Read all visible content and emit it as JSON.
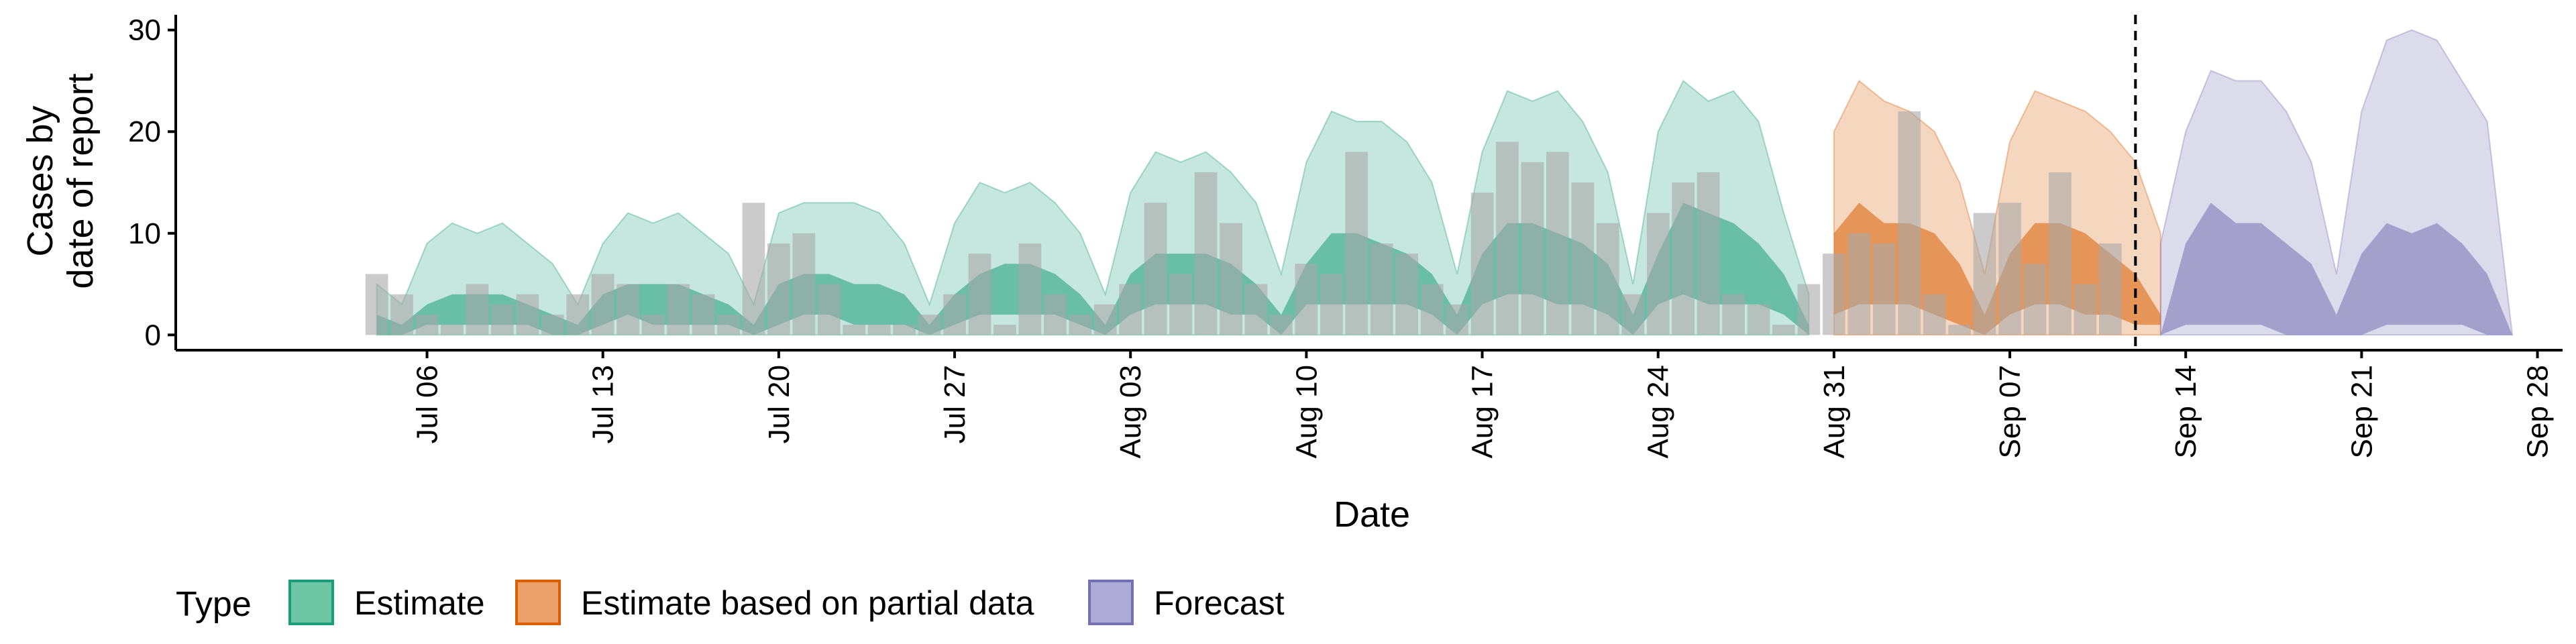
{
  "chart_data": {
    "type": "area",
    "xlabel": "Date",
    "ylabel_lines": [
      "Cases by",
      "date of report"
    ],
    "ylim": [
      -1.5,
      31.5
    ],
    "yticks": [
      0,
      10,
      20,
      30
    ],
    "xlim": [
      "2020-06-26",
      "2020-09-29"
    ],
    "xticks": [
      {
        "date": "2020-07-06",
        "label": "Jul 06"
      },
      {
        "date": "2020-07-13",
        "label": "Jul 13"
      },
      {
        "date": "2020-07-20",
        "label": "Jul 20"
      },
      {
        "date": "2020-07-27",
        "label": "Jul 27"
      },
      {
        "date": "2020-08-03",
        "label": "Aug 03"
      },
      {
        "date": "2020-08-10",
        "label": "Aug 10"
      },
      {
        "date": "2020-08-17",
        "label": "Aug 17"
      },
      {
        "date": "2020-08-24",
        "label": "Aug 24"
      },
      {
        "date": "2020-08-31",
        "label": "Aug 31"
      },
      {
        "date": "2020-09-07",
        "label": "Sep 07"
      },
      {
        "date": "2020-09-14",
        "label": "Sep 14"
      },
      {
        "date": "2020-09-21",
        "label": "Sep 21"
      },
      {
        "date": "2020-09-28",
        "label": "Sep 28"
      }
    ],
    "forecast_line_date": "2020-09-12",
    "bar_color": "#A9A9A9",
    "reported_cases": {
      "start": "2020-07-04",
      "values": [
        6,
        4,
        2,
        1,
        5,
        3,
        4,
        2,
        4,
        6,
        5,
        2,
        5,
        4,
        2,
        13,
        9,
        10,
        5,
        1,
        1,
        1,
        2,
        4,
        8,
        1,
        9,
        4,
        2,
        3,
        5,
        13,
        6,
        16,
        11,
        5,
        2,
        7,
        6,
        18,
        9,
        8,
        5,
        3,
        14,
        19,
        17,
        18,
        15,
        11,
        4,
        12,
        15,
        16,
        4,
        3,
        1,
        5,
        8,
        10,
        9,
        22,
        4,
        1,
        12,
        13,
        7,
        16,
        5,
        9
      ]
    },
    "series": [
      {
        "name": "Estimate",
        "color": "#1B9E77",
        "start": "2020-07-04",
        "lower90": [
          0,
          0,
          0,
          0,
          0,
          0,
          0,
          0,
          0,
          0,
          0,
          0,
          0,
          0,
          0,
          0,
          0,
          0,
          0,
          0,
          0,
          0,
          0,
          0,
          0,
          0,
          0,
          0,
          0,
          0,
          0,
          0,
          0,
          0,
          0,
          0,
          0,
          0,
          0,
          0,
          0,
          0,
          0,
          0,
          0,
          0,
          0,
          0,
          0,
          0,
          0,
          0,
          0,
          0,
          0,
          0,
          0,
          0
        ],
        "upper90": [
          5,
          3,
          9,
          11,
          10,
          11,
          9,
          7,
          3,
          9,
          12,
          11,
          12,
          10,
          8,
          3,
          12,
          13,
          13,
          13,
          12,
          9,
          3,
          11,
          15,
          14,
          15,
          13,
          10,
          4,
          14,
          18,
          17,
          18,
          16,
          13,
          6,
          17,
          22,
          21,
          21,
          19,
          15,
          6,
          18,
          24,
          23,
          24,
          21,
          16,
          5,
          20,
          25,
          23,
          24,
          21,
          12,
          4
        ],
        "lower50": [
          0,
          0,
          1,
          1,
          1,
          1,
          1,
          0,
          0,
          1,
          2,
          1,
          1,
          1,
          1,
          0,
          1,
          2,
          2,
          1,
          1,
          1,
          0,
          1,
          2,
          2,
          2,
          2,
          1,
          0,
          2,
          3,
          3,
          3,
          2,
          2,
          0,
          3,
          3,
          3,
          3,
          3,
          2,
          0,
          3,
          4,
          4,
          3,
          3,
          2,
          0,
          3,
          4,
          3,
          3,
          3,
          2,
          0
        ],
        "upper50": [
          2,
          1,
          3,
          4,
          4,
          4,
          3,
          2,
          1,
          4,
          5,
          5,
          5,
          4,
          3,
          1,
          5,
          6,
          6,
          5,
          5,
          4,
          1,
          4,
          6,
          7,
          7,
          6,
          4,
          1,
          6,
          8,
          8,
          8,
          7,
          5,
          2,
          7,
          10,
          10,
          9,
          8,
          6,
          2,
          8,
          11,
          11,
          10,
          9,
          7,
          2,
          8,
          13,
          12,
          11,
          9,
          6,
          1
        ]
      },
      {
        "name": "Estimate based on partial data",
        "color": "#D95F02",
        "start": "2020-08-31",
        "lower90": [
          0,
          0,
          0,
          0,
          0,
          0,
          0,
          0,
          0,
          0,
          0,
          0,
          0,
          0
        ],
        "upper90": [
          20,
          25,
          23,
          22,
          20,
          15,
          6,
          19,
          24,
          23,
          22,
          20,
          17,
          10
        ],
        "lower50": [
          2,
          3,
          3,
          3,
          2,
          1,
          0,
          2,
          3,
          3,
          2,
          2,
          1,
          1
        ],
        "upper50": [
          10,
          13,
          11,
          11,
          10,
          7,
          2,
          8,
          11,
          11,
          10,
          8,
          6,
          2
        ]
      },
      {
        "name": "Forecast",
        "color": "#7570B3",
        "start": "2020-09-13",
        "lower90": [
          0,
          0,
          0,
          0,
          0,
          0,
          0,
          0,
          0,
          0,
          0,
          0,
          0,
          0,
          0
        ],
        "upper90": [
          9,
          20,
          26,
          25,
          25,
          22,
          17,
          6,
          22,
          29,
          30,
          29,
          25,
          21,
          0
        ],
        "lower50": [
          0,
          1,
          1,
          1,
          1,
          0,
          0,
          0,
          0,
          1,
          1,
          1,
          1,
          0,
          0
        ],
        "upper50": [
          0,
          9,
          13,
          11,
          11,
          9,
          7,
          2,
          8,
          11,
          10,
          11,
          9,
          6,
          0
        ]
      }
    ],
    "legend": {
      "position": "bottom-left",
      "title": "Type",
      "entries": [
        {
          "name": "Estimate",
          "fill": "#6FC6A6",
          "stroke": "#1B9E77"
        },
        {
          "name": "Estimate based on partial data",
          "fill": "#EBA06A",
          "stroke": "#D95F02"
        },
        {
          "name": "Forecast",
          "fill": "#ADAAD6",
          "stroke": "#7570B3"
        }
      ]
    },
    "grid": false
  }
}
